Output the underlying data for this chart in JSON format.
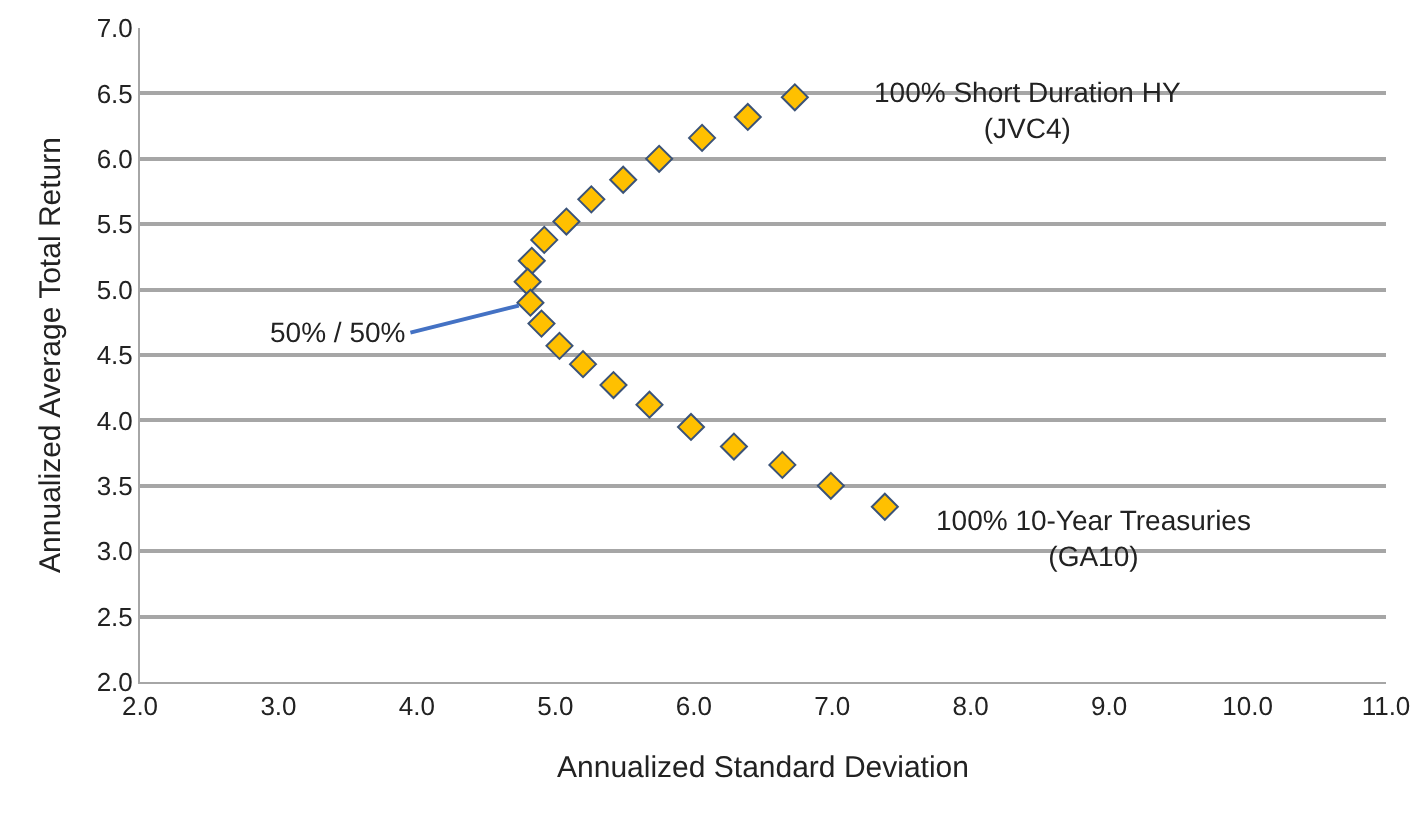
{
  "chart_data": {
    "type": "scatter",
    "xlabel": "Annualized Standard Deviation",
    "ylabel": "Annualized Average Total Return",
    "x": [
      6.73,
      6.39,
      6.06,
      5.75,
      5.49,
      5.26,
      5.08,
      4.92,
      4.83,
      4.8,
      4.82,
      4.9,
      5.03,
      5.2,
      5.42,
      5.68,
      5.98,
      6.29,
      6.64,
      6.99,
      7.38
    ],
    "series": [
      {
        "color": "#ffc000",
        "values": [
          6.47,
          6.32,
          6.16,
          6.0,
          5.84,
          5.69,
          5.52,
          5.38,
          5.22,
          5.06,
          4.9,
          4.74,
          4.57,
          4.43,
          4.27,
          4.12,
          3.95,
          3.8,
          3.66,
          3.5,
          3.34
        ]
      }
    ],
    "xlim": [
      2,
      11
    ],
    "xticks": [
      {
        "value": 2,
        "label": "2.0"
      },
      {
        "value": 3,
        "label": "3.0"
      },
      {
        "value": 4,
        "label": "4.0"
      },
      {
        "value": 5,
        "label": "5.0"
      },
      {
        "value": 6,
        "label": "6.0"
      },
      {
        "value": 7,
        "label": "7.0"
      },
      {
        "value": 8,
        "label": "8.0"
      },
      {
        "value": 9,
        "label": "9.0"
      },
      {
        "value": 10,
        "label": "10.0"
      },
      {
        "value": 11,
        "label": "11.0"
      }
    ],
    "ylim": [
      2,
      7
    ],
    "yticks": [
      {
        "value": 2,
        "label": "2.0"
      },
      {
        "value": 2.5,
        "label": "2.5"
      },
      {
        "value": 3,
        "label": "3.0"
      },
      {
        "value": 3.5,
        "label": "3.5"
      },
      {
        "value": 4,
        "label": "4.0"
      },
      {
        "value": 4.5,
        "label": "4.5"
      },
      {
        "value": 5,
        "label": "5.0"
      },
      {
        "value": 5.5,
        "label": "5.5"
      },
      {
        "value": 6,
        "label": "6.0"
      },
      {
        "value": 6.5,
        "label": "6.5"
      },
      {
        "value": 7,
        "label": "7.0"
      }
    ],
    "annotations": [
      {
        "text": "100% Short Duration HY\n(JVC4)",
        "x": 6.73,
        "y": 6.47
      },
      {
        "text": "50% / 50%",
        "x": 4.82,
        "y": 4.9
      },
      {
        "text": "100% 10-Year Treasuries\n(GA10)",
        "x": 7.38,
        "y": 3.34
      }
    ],
    "grid": "y",
    "marker": "diamond"
  }
}
